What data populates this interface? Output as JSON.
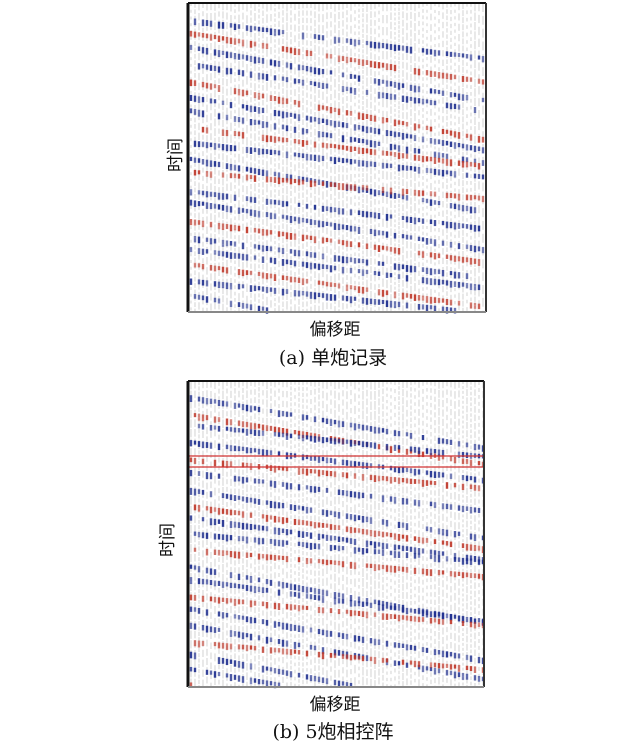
{
  "panels": [
    {
      "ylabel": "时间",
      "xlabel": "偏移距",
      "caption": "(a) 单炮记录"
    },
    {
      "ylabel": "时间",
      "xlabel": "偏移距",
      "caption": "(b) 5炮相控阵"
    }
  ]
}
